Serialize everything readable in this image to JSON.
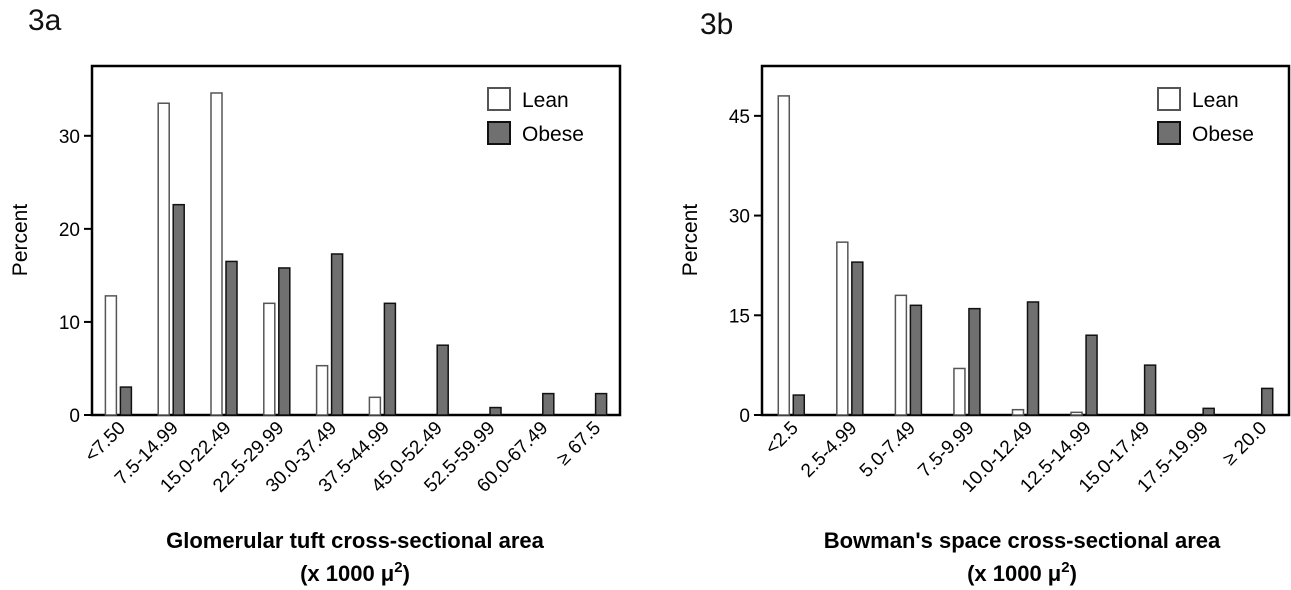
{
  "panels": [
    {
      "label": "3a",
      "xlabel_line1": "Glomerular tuft cross-sectional area",
      "xlabel_line2_prefix": "(x 1000 ",
      "xlabel_line2_unit": "μ",
      "xlabel_line2_sup": "2",
      "xlabel_line2_suffix": ")",
      "ylabel": "Percent"
    },
    {
      "label": "3b",
      "xlabel_line1": "Bowman's space cross-sectional area",
      "xlabel_line2_prefix": "(x 1000 ",
      "xlabel_line2_unit": "μ",
      "xlabel_line2_sup": "2",
      "xlabel_line2_suffix": ")",
      "ylabel": "Percent"
    }
  ],
  "colors": {
    "lean_fill": "#ffffff",
    "lean_stroke": "#555555",
    "obese_fill": "#707070",
    "obese_stroke": "#111111"
  },
  "chart_data": [
    {
      "type": "bar",
      "title": "",
      "xlabel": "Glomerular tuft cross-sectional area (x 1000 μ2)",
      "ylabel": "Percent",
      "categories": [
        "<7.50",
        "7.5-14.99",
        "15.0-22.49",
        "22.5-29.99",
        "30.0-37.49",
        "37.5-44.99",
        "45.0-52.49",
        "52.5-59.99",
        "60.0-67.49",
        "≥ 67.5"
      ],
      "series": [
        {
          "name": "Lean",
          "values": [
            12.8,
            33.5,
            34.6,
            12.0,
            5.3,
            1.9,
            0,
            0,
            0,
            0
          ]
        },
        {
          "name": "Obese",
          "values": [
            3.0,
            22.6,
            16.5,
            15.8,
            17.3,
            12.0,
            7.5,
            0.8,
            2.3,
            2.3
          ]
        }
      ],
      "ylim": [
        0,
        37.5
      ],
      "yticks": [
        0,
        10,
        20,
        30
      ],
      "legend": "top-right",
      "grid": false
    },
    {
      "type": "bar",
      "title": "",
      "xlabel": "Bowman's space cross-sectional area (x 1000 μ2)",
      "ylabel": "Percent",
      "categories": [
        "<2.5",
        "2.5-4.99",
        "5.0-7.49",
        "7.5-9.99",
        "10.0-12.49",
        "12.5-14.99",
        "15.0-17.49",
        "17.5-19.99",
        "≥ 20.0"
      ],
      "series": [
        {
          "name": "Lean",
          "values": [
            48.0,
            26.0,
            18.0,
            7.0,
            0.8,
            0.4,
            0,
            0,
            0
          ]
        },
        {
          "name": "Obese",
          "values": [
            3.0,
            23.0,
            16.5,
            16.0,
            17.0,
            12.0,
            7.5,
            1.0,
            4.0
          ]
        }
      ],
      "ylim": [
        0,
        52.5
      ],
      "yticks": [
        0,
        15,
        30,
        45
      ],
      "legend": "top-right",
      "grid": false
    }
  ]
}
